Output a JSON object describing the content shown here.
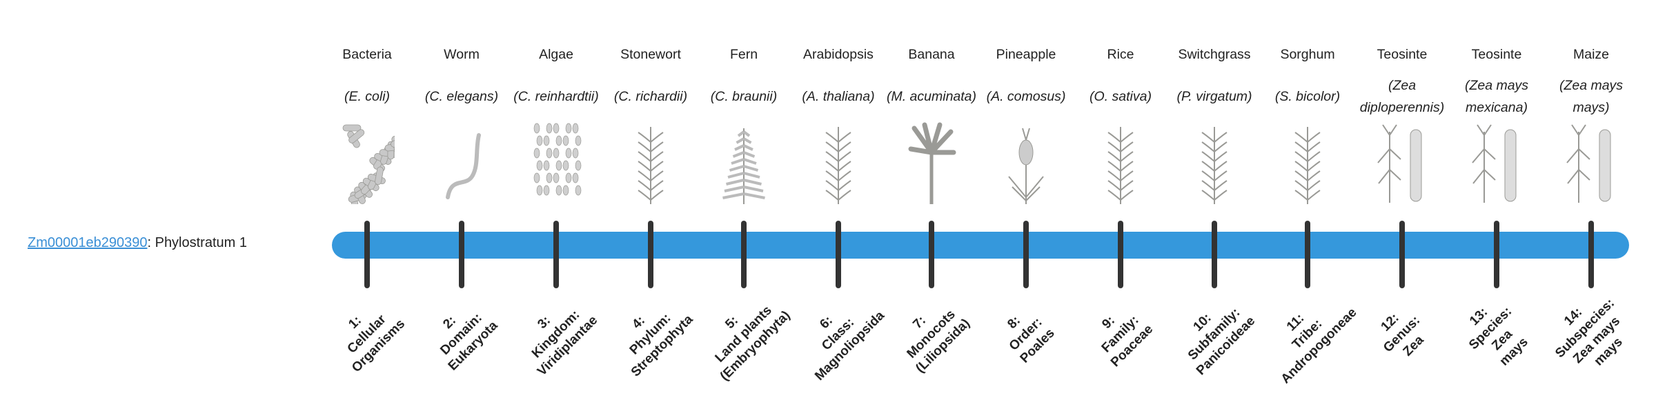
{
  "gene": {
    "id": "Zm00001eb290390",
    "suffix": ": Phylostratum 1"
  },
  "bar_color": "#3598dc",
  "strata": [
    {
      "common": "Bacteria",
      "scientific": "E. coli",
      "image": "bacteria-illustration",
      "label": [
        "1:",
        "Cellular",
        "Organisms"
      ]
    },
    {
      "common": "Worm",
      "scientific": "C. elegans",
      "image": "worm-illustration",
      "label": [
        "2:",
        "Domain:",
        "Eukaryota"
      ]
    },
    {
      "common": "Algae",
      "scientific": "C. reinhardtii",
      "image": "algae-illustration",
      "label": [
        "3:",
        "Kingdom:",
        "Viridiplantae"
      ]
    },
    {
      "common": "Stonewort",
      "scientific": "C. richardii",
      "image": "stonewort-illustration",
      "label": [
        "4:",
        "Phylum:",
        "Streptophyta"
      ]
    },
    {
      "common": "Fern",
      "scientific": "C. braunii",
      "image": "fern-illustration",
      "label": [
        "5:",
        "Land plants",
        "(Embryophyta)"
      ]
    },
    {
      "common": "Arabidopsis",
      "scientific": "A. thaliana",
      "image": "arabidopsis-illustration",
      "label": [
        "6:",
        "Class:",
        "Magnoliopsida"
      ]
    },
    {
      "common": "Banana",
      "scientific": "M. acuminata",
      "image": "banana-illustration",
      "label": [
        "7:",
        "Monocots",
        "(Liliopsida)"
      ]
    },
    {
      "common": "Pineapple",
      "scientific": "A. comosus",
      "image": "pineapple-illustration",
      "label": [
        "8:",
        "Order:",
        "Poales"
      ]
    },
    {
      "common": "Rice",
      "scientific": "O. sativa",
      "image": "rice-illustration",
      "label": [
        "9:",
        "Family:",
        "Poaceae"
      ]
    },
    {
      "common": "Switchgrass",
      "scientific": "P. virgatum",
      "image": "switchgrass-illustration",
      "label": [
        "10:",
        "Subfamily:",
        "Panicoideae"
      ]
    },
    {
      "common": "Sorghum",
      "scientific": "S. bicolor",
      "image": "sorghum-illustration",
      "label": [
        "11:",
        "Tribe:",
        "Andropogoneae"
      ]
    },
    {
      "common": "Teosinte",
      "scientific": "Zea diploperennis",
      "image": "teosinte-illustration",
      "label": [
        "12:",
        "Genus:",
        "Zea"
      ]
    },
    {
      "common": "Teosinte",
      "scientific": "Zea mays mexicana",
      "image": "teosinte-mexicana-illustration",
      "label": [
        "13:",
        "Species:",
        "Zea",
        "mays"
      ]
    },
    {
      "common": "Maize",
      "scientific": "Zea mays mays",
      "image": "maize-illustration",
      "label": [
        "14:",
        "Subspecies:",
        "Zea mays",
        "mays"
      ]
    }
  ]
}
